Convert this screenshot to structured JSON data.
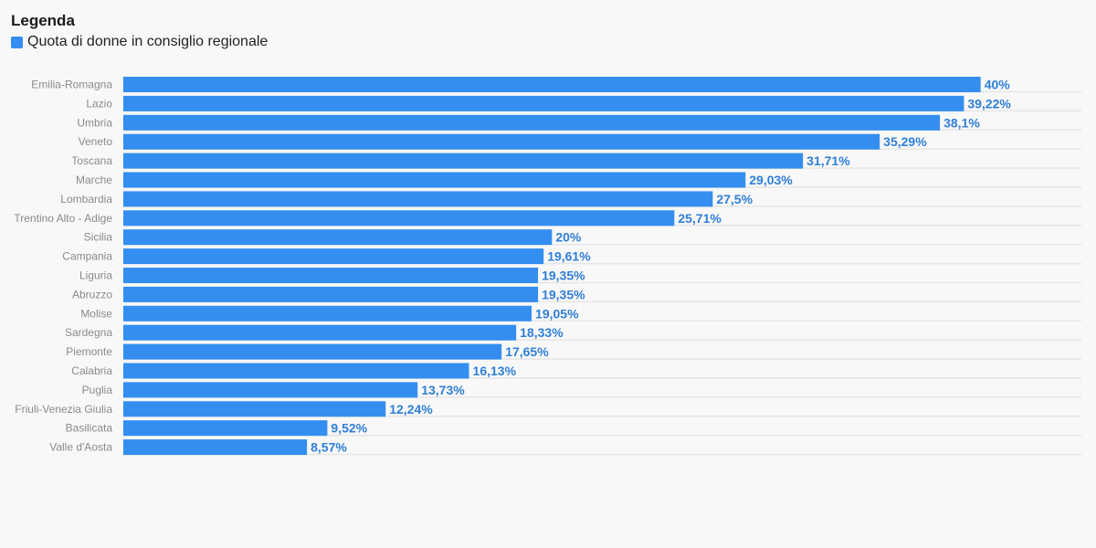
{
  "legend": {
    "title": "Legenda",
    "series_label": "Quota di donne in consiglio regionale"
  },
  "colors": {
    "bar": "#338ef0",
    "value_label": "#2f7fd8",
    "grid": "#e6e6e6"
  },
  "chart_data": {
    "type": "bar",
    "orientation": "horizontal",
    "categories": [
      "Emilia-Romagna",
      "Lazio",
      "Umbria",
      "Veneto",
      "Toscana",
      "Marche",
      "Lombardia",
      "Trentino Alto - Adige",
      "Sicilia",
      "Campania",
      "Liguria",
      "Abruzzo",
      "Molise",
      "Sardegna",
      "Piemonte",
      "Calabria",
      "Puglia",
      "Friuli-Venezia Giulia",
      "Basilicata",
      "Valle d'Aosta"
    ],
    "series": [
      {
        "name": "Quota di donne in consiglio regionale",
        "values": [
          40,
          39.22,
          38.1,
          35.29,
          31.71,
          29.03,
          27.5,
          25.71,
          20,
          19.61,
          19.35,
          19.35,
          19.05,
          18.33,
          17.65,
          16.13,
          13.73,
          12.24,
          9.52,
          8.57
        ]
      }
    ],
    "value_labels": [
      "40%",
      "39,22%",
      "38,1%",
      "35,29%",
      "31,71%",
      "29,03%",
      "27,5%",
      "25,71%",
      "20%",
      "19,61%",
      "19,35%",
      "19,35%",
      "19,05%",
      "18,33%",
      "17,65%",
      "16,13%",
      "13,73%",
      "12,24%",
      "9,52%",
      "8,57%"
    ],
    "xlim": [
      0,
      40
    ],
    "grid": true,
    "legend_position": "top-left"
  }
}
